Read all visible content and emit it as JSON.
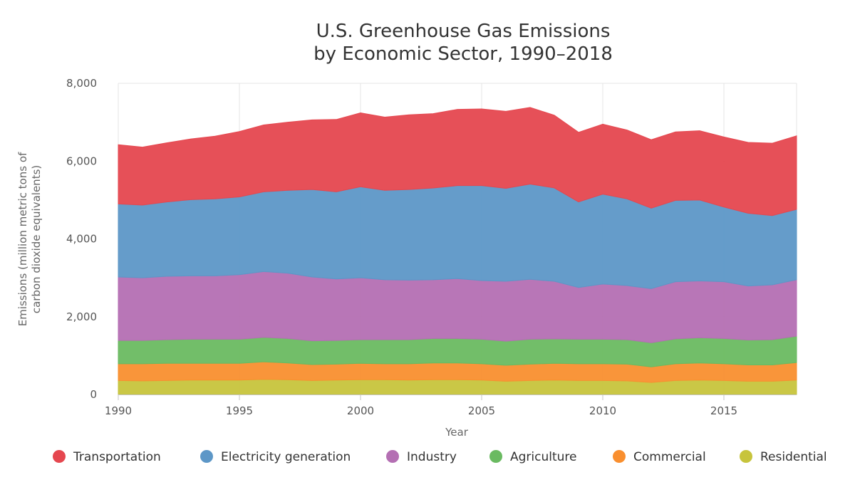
{
  "chart_data": {
    "type": "area",
    "stacked": true,
    "title": [
      "U.S. Greenhouse Gas Emissions",
      "by Economic Sector, 1990–2018"
    ],
    "xlabel": "Year",
    "ylabel": [
      "Emissions (million metric tons of",
      "carbon dioxide equivalents)"
    ],
    "xlim": [
      1990,
      2018
    ],
    "ylim": [
      0,
      8000
    ],
    "x_ticks": [
      1990,
      1995,
      2000,
      2005,
      2010,
      2015
    ],
    "x_tick_labels": [
      "1990",
      "1995",
      "2000",
      "2005",
      "2010",
      "2015"
    ],
    "y_ticks": [
      0,
      2000,
      4000,
      6000,
      8000
    ],
    "y_tick_labels": [
      "0",
      "2,000",
      "4,000",
      "6,000",
      "8,000"
    ],
    "grid": true,
    "legend_position": "bottom",
    "x": [
      1990,
      1991,
      1992,
      1993,
      1994,
      1995,
      1996,
      1997,
      1998,
      1999,
      2000,
      2001,
      2002,
      2003,
      2004,
      2005,
      2006,
      2007,
      2008,
      2009,
      2010,
      2011,
      2012,
      2013,
      2014,
      2015,
      2016,
      2017,
      2018
    ],
    "series": [
      {
        "name": "Residential",
        "color": "#c7c43c",
        "values": [
          360,
          350,
          360,
          370,
          370,
          370,
          390,
          380,
          360,
          370,
          380,
          380,
          370,
          380,
          380,
          370,
          340,
          360,
          370,
          360,
          360,
          350,
          310,
          360,
          370,
          360,
          340,
          340,
          370
        ]
      },
      {
        "name": "Commercial",
        "color": "#f98f2f",
        "values": [
          430,
          440,
          440,
          430,
          430,
          430,
          450,
          430,
          410,
          410,
          420,
          410,
          420,
          430,
          430,
          420,
          410,
          420,
          430,
          430,
          430,
          430,
          400,
          430,
          440,
          430,
          420,
          420,
          450
        ]
      },
      {
        "name": "Agriculture",
        "color": "#6aba61",
        "values": [
          600,
          600,
          610,
          620,
          620,
          620,
          630,
          630,
          610,
          610,
          610,
          620,
          620,
          630,
          630,
          630,
          620,
          640,
          630,
          630,
          630,
          630,
          620,
          640,
          650,
          650,
          640,
          650,
          680
        ]
      },
      {
        "name": "Industry",
        "color": "#b46fb3",
        "values": [
          1630,
          1610,
          1630,
          1630,
          1630,
          1660,
          1690,
          1680,
          1640,
          1580,
          1590,
          1540,
          1530,
          1510,
          1540,
          1510,
          1540,
          1540,
          1480,
          1330,
          1420,
          1390,
          1390,
          1470,
          1460,
          1460,
          1390,
          1410,
          1450
        ]
      },
      {
        "name": "Electricity generation",
        "color": "#5d97c7",
        "values": [
          1880,
          1870,
          1910,
          1960,
          1980,
          2000,
          2050,
          2130,
          2250,
          2240,
          2340,
          2300,
          2330,
          2360,
          2390,
          2440,
          2390,
          2450,
          2400,
          2200,
          2310,
          2230,
          2070,
          2090,
          2080,
          1920,
          1870,
          1780,
          1810
        ]
      },
      {
        "name": "Transportation",
        "color": "#e5474f",
        "values": [
          1520,
          1490,
          1520,
          1560,
          1610,
          1680,
          1720,
          1750,
          1790,
          1860,
          1900,
          1880,
          1920,
          1910,
          1960,
          1970,
          1980,
          1970,
          1870,
          1790,
          1800,
          1770,
          1760,
          1760,
          1780,
          1800,
          1820,
          1860,
          1890
        ]
      }
    ],
    "legend": [
      {
        "name": "Transportation",
        "color": "#e5474f"
      },
      {
        "name": "Electricity generation",
        "color": "#5d97c7"
      },
      {
        "name": "Industry",
        "color": "#b46fb3"
      },
      {
        "name": "Agriculture",
        "color": "#6aba61"
      },
      {
        "name": "Commercial",
        "color": "#f98f2f"
      },
      {
        "name": "Residential",
        "color": "#c7c43c"
      }
    ]
  }
}
